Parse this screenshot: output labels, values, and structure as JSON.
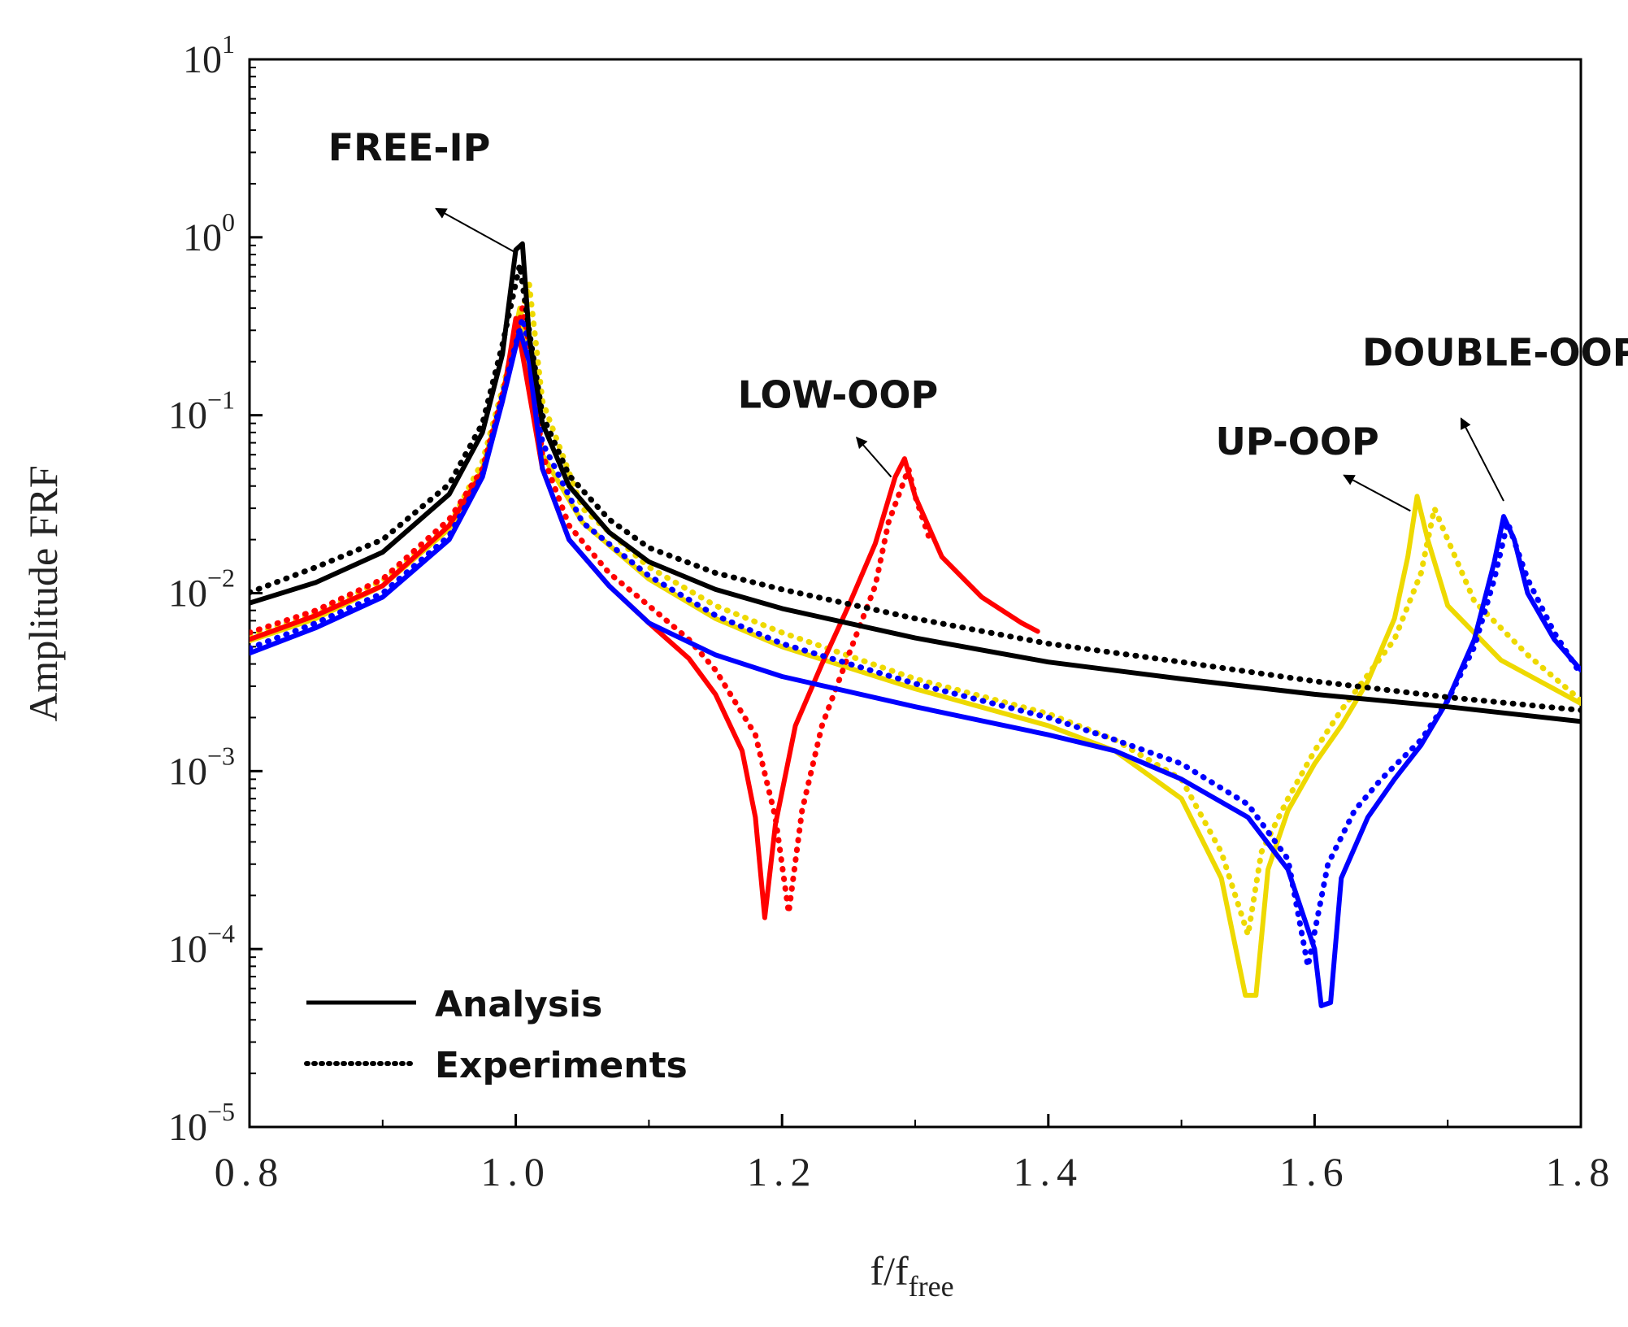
{
  "chart_data": {
    "type": "line",
    "ylabel": "Amplitude FRF",
    "xlabel": {
      "base": "f/f",
      "sub": "free"
    },
    "xlim": [
      0.8,
      1.8
    ],
    "ylim_log10": [
      -5,
      1
    ],
    "x_ticks": [
      {
        "value": 0.8,
        "label": "0.8"
      },
      {
        "value": 1.0,
        "label": "1.0"
      },
      {
        "value": 1.2,
        "label": "1.2"
      },
      {
        "value": 1.4,
        "label": "1.4"
      },
      {
        "value": 1.6,
        "label": "1.6"
      },
      {
        "value": 1.8,
        "label": "1.8"
      }
    ],
    "y_ticks": [
      {
        "exp": 1,
        "base": "10",
        "sup": "1"
      },
      {
        "exp": 0,
        "base": "10",
        "sup": "0"
      },
      {
        "exp": -1,
        "base": "10",
        "sup": "−1"
      },
      {
        "exp": -2,
        "base": "10",
        "sup": "−2"
      },
      {
        "exp": -3,
        "base": "10",
        "sup": "−3"
      },
      {
        "exp": -4,
        "base": "10",
        "sup": "−4"
      },
      {
        "exp": -5,
        "base": "10",
        "sup": "−5"
      }
    ],
    "legend": {
      "position": "bottom-left",
      "entries": [
        {
          "label": "Analysis",
          "style": "solid"
        },
        {
          "label": "Experiments",
          "style": "dotted"
        }
      ]
    },
    "annotations": [
      {
        "text": "FREE-IP",
        "text_x": 0.92,
        "text_y": 2.7,
        "arrow_from": [
          1.0,
          0.82
        ],
        "arrow_to": [
          0.94,
          1.45
        ]
      },
      {
        "text": "LOW-OOP",
        "text_x": 1.242,
        "text_y": 0.11,
        "arrow_from": [
          1.282,
          0.045
        ],
        "arrow_to": [
          1.256,
          0.075
        ]
      },
      {
        "text": "UP-OOP",
        "text_x": 1.587,
        "text_y": 0.06,
        "arrow_from": [
          1.672,
          0.029
        ],
        "arrow_to": [
          1.622,
          0.046
        ]
      },
      {
        "text": "DOUBLE-OOP",
        "text_x": 1.74,
        "text_y": 0.19,
        "arrow_from": [
          1.742,
          0.033
        ],
        "arrow_to": [
          1.71,
          0.096
        ]
      }
    ],
    "series": [
      {
        "name": "FREE-IP Analysis",
        "color": "#000000",
        "style": "solid",
        "points": [
          [
            0.8,
            0.0088
          ],
          [
            0.85,
            0.0115
          ],
          [
            0.9,
            0.017
          ],
          [
            0.95,
            0.036
          ],
          [
            0.975,
            0.08
          ],
          [
            0.99,
            0.22
          ],
          [
            1.0,
            0.85
          ],
          [
            1.005,
            0.92
          ],
          [
            1.01,
            0.28
          ],
          [
            1.02,
            0.09
          ],
          [
            1.04,
            0.04
          ],
          [
            1.07,
            0.022
          ],
          [
            1.1,
            0.015
          ],
          [
            1.15,
            0.0105
          ],
          [
            1.2,
            0.0082
          ],
          [
            1.3,
            0.0056
          ],
          [
            1.4,
            0.0041
          ],
          [
            1.5,
            0.0033
          ],
          [
            1.6,
            0.0027
          ],
          [
            1.7,
            0.0023
          ],
          [
            1.8,
            0.0019
          ]
        ]
      },
      {
        "name": "FREE-IP Experiments",
        "color": "#000000",
        "style": "dotted",
        "points": [
          [
            0.8,
            0.0101
          ],
          [
            0.85,
            0.014
          ],
          [
            0.9,
            0.02
          ],
          [
            0.95,
            0.041
          ],
          [
            0.975,
            0.09
          ],
          [
            0.99,
            0.25
          ],
          [
            1.003,
            0.7
          ],
          [
            1.01,
            0.3
          ],
          [
            1.02,
            0.1
          ],
          [
            1.04,
            0.046
          ],
          [
            1.07,
            0.026
          ],
          [
            1.1,
            0.018
          ],
          [
            1.15,
            0.013
          ],
          [
            1.2,
            0.0105
          ],
          [
            1.3,
            0.0072
          ],
          [
            1.4,
            0.0052
          ],
          [
            1.5,
            0.0041
          ],
          [
            1.6,
            0.0032
          ],
          [
            1.7,
            0.0026
          ],
          [
            1.8,
            0.0022
          ]
        ]
      },
      {
        "name": "LOW-OOP Analysis",
        "color": "#ff0000",
        "style": "solid",
        "points": [
          [
            0.8,
            0.0055
          ],
          [
            0.85,
            0.0075
          ],
          [
            0.9,
            0.011
          ],
          [
            0.95,
            0.024
          ],
          [
            0.975,
            0.048
          ],
          [
            0.99,
            0.12
          ],
          [
            1.0,
            0.35
          ],
          [
            1.005,
            0.22
          ],
          [
            1.02,
            0.05
          ],
          [
            1.04,
            0.02
          ],
          [
            1.07,
            0.011
          ],
          [
            1.1,
            0.0068
          ],
          [
            1.13,
            0.0043
          ],
          [
            1.15,
            0.0027
          ],
          [
            1.17,
            0.0013
          ],
          [
            1.18,
            0.00055
          ],
          [
            1.187,
            0.00015
          ],
          [
            1.195,
            0.0005
          ],
          [
            1.21,
            0.0018
          ],
          [
            1.23,
            0.004
          ],
          [
            1.25,
            0.0085
          ],
          [
            1.27,
            0.019
          ],
          [
            1.285,
            0.045
          ],
          [
            1.292,
            0.057
          ],
          [
            1.3,
            0.035
          ],
          [
            1.32,
            0.016
          ],
          [
            1.35,
            0.0095
          ],
          [
            1.38,
            0.0068
          ],
          [
            1.392,
            0.0061
          ]
        ]
      },
      {
        "name": "LOW-OOP Experiments",
        "color": "#ff0000",
        "style": "dotted",
        "points": [
          [
            0.8,
            0.006
          ],
          [
            0.85,
            0.008
          ],
          [
            0.9,
            0.012
          ],
          [
            0.95,
            0.026
          ],
          [
            0.975,
            0.05
          ],
          [
            0.99,
            0.13
          ],
          [
            1.005,
            0.4
          ],
          [
            1.01,
            0.25
          ],
          [
            1.02,
            0.06
          ],
          [
            1.04,
            0.024
          ],
          [
            1.07,
            0.013
          ],
          [
            1.1,
            0.0085
          ],
          [
            1.13,
            0.0055
          ],
          [
            1.15,
            0.0037
          ],
          [
            1.18,
            0.0016
          ],
          [
            1.195,
            0.00055
          ],
          [
            1.205,
            0.00016
          ],
          [
            1.215,
            0.0006
          ],
          [
            1.23,
            0.0018
          ],
          [
            1.25,
            0.0045
          ],
          [
            1.27,
            0.011
          ],
          [
            1.28,
            0.025
          ],
          [
            1.295,
            0.05
          ],
          [
            1.3,
            0.035
          ],
          [
            1.31,
            0.021
          ]
        ]
      },
      {
        "name": "UP-OOP Analysis",
        "color": "#eed900",
        "style": "solid",
        "points": [
          [
            0.8,
            0.0054
          ],
          [
            0.85,
            0.0072
          ],
          [
            0.9,
            0.011
          ],
          [
            0.95,
            0.023
          ],
          [
            0.975,
            0.05
          ],
          [
            0.99,
            0.13
          ],
          [
            1.003,
            0.4
          ],
          [
            1.01,
            0.18
          ],
          [
            1.02,
            0.06
          ],
          [
            1.05,
            0.025
          ],
          [
            1.1,
            0.012
          ],
          [
            1.15,
            0.0072
          ],
          [
            1.2,
            0.005
          ],
          [
            1.3,
            0.0029
          ],
          [
            1.4,
            0.0018
          ],
          [
            1.45,
            0.0013
          ],
          [
            1.5,
            0.0007
          ],
          [
            1.53,
            0.00025
          ],
          [
            1.548,
            5.5e-05
          ],
          [
            1.556,
            5.5e-05
          ],
          [
            1.565,
            0.00028
          ],
          [
            1.58,
            0.0006
          ],
          [
            1.6,
            0.0011
          ],
          [
            1.62,
            0.0018
          ],
          [
            1.64,
            0.0032
          ],
          [
            1.66,
            0.0072
          ],
          [
            1.67,
            0.016
          ],
          [
            1.677,
            0.035
          ],
          [
            1.685,
            0.02
          ],
          [
            1.7,
            0.0085
          ],
          [
            1.74,
            0.0042
          ],
          [
            1.8,
            0.0024
          ]
        ]
      },
      {
        "name": "UP-OOP Experiments",
        "color": "#eed900",
        "style": "dotted",
        "points": [
          [
            0.8,
            0.0058
          ],
          [
            0.85,
            0.0077
          ],
          [
            0.9,
            0.0118
          ],
          [
            0.95,
            0.024
          ],
          [
            0.975,
            0.055
          ],
          [
            0.99,
            0.14
          ],
          [
            1.01,
            0.55
          ],
          [
            1.02,
            0.12
          ],
          [
            1.05,
            0.03
          ],
          [
            1.1,
            0.014
          ],
          [
            1.15,
            0.0085
          ],
          [
            1.2,
            0.006
          ],
          [
            1.3,
            0.0033
          ],
          [
            1.4,
            0.0021
          ],
          [
            1.45,
            0.0015
          ],
          [
            1.5,
            0.0009
          ],
          [
            1.53,
            0.00035
          ],
          [
            1.55,
            0.00012
          ],
          [
            1.56,
            0.00035
          ],
          [
            1.58,
            0.0007
          ],
          [
            1.6,
            0.0013
          ],
          [
            1.62,
            0.0022
          ],
          [
            1.66,
            0.0055
          ],
          [
            1.68,
            0.013
          ],
          [
            1.69,
            0.03
          ],
          [
            1.7,
            0.02
          ],
          [
            1.72,
            0.009
          ],
          [
            1.76,
            0.0045
          ],
          [
            1.8,
            0.0025
          ]
        ]
      },
      {
        "name": "DOUBLE-OOP Analysis",
        "color": "#0000ff",
        "style": "solid",
        "points": [
          [
            0.8,
            0.0046
          ],
          [
            0.85,
            0.0064
          ],
          [
            0.9,
            0.0095
          ],
          [
            0.95,
            0.02
          ],
          [
            0.975,
            0.045
          ],
          [
            0.99,
            0.12
          ],
          [
            1.003,
            0.3
          ],
          [
            1.01,
            0.2
          ],
          [
            1.02,
            0.05
          ],
          [
            1.04,
            0.02
          ],
          [
            1.07,
            0.011
          ],
          [
            1.1,
            0.0068
          ],
          [
            1.15,
            0.0045
          ],
          [
            1.2,
            0.0034
          ],
          [
            1.3,
            0.0023
          ],
          [
            1.4,
            0.0016
          ],
          [
            1.45,
            0.0013
          ],
          [
            1.5,
            0.0009
          ],
          [
            1.55,
            0.00055
          ],
          [
            1.58,
            0.00028
          ],
          [
            1.6,
            0.0001
          ],
          [
            1.605,
            4.8e-05
          ],
          [
            1.612,
            5e-05
          ],
          [
            1.62,
            0.00025
          ],
          [
            1.64,
            0.00055
          ],
          [
            1.66,
            0.0009
          ],
          [
            1.68,
            0.0014
          ],
          [
            1.7,
            0.0025
          ],
          [
            1.72,
            0.0055
          ],
          [
            1.735,
            0.015
          ],
          [
            1.742,
            0.027
          ],
          [
            1.75,
            0.02
          ],
          [
            1.76,
            0.01
          ],
          [
            1.78,
            0.0055
          ],
          [
            1.8,
            0.0037
          ]
        ]
      },
      {
        "name": "DOUBLE-OOP Experiments",
        "color": "#0000ff",
        "style": "dotted",
        "points": [
          [
            0.8,
            0.0049
          ],
          [
            0.85,
            0.0068
          ],
          [
            0.9,
            0.01
          ],
          [
            0.95,
            0.021
          ],
          [
            0.975,
            0.046
          ],
          [
            0.99,
            0.13
          ],
          [
            1.005,
            0.35
          ],
          [
            1.01,
            0.25
          ],
          [
            1.02,
            0.07
          ],
          [
            1.05,
            0.025
          ],
          [
            1.1,
            0.0125
          ],
          [
            1.15,
            0.0075
          ],
          [
            1.2,
            0.0052
          ],
          [
            1.3,
            0.0031
          ],
          [
            1.4,
            0.002
          ],
          [
            1.45,
            0.0015
          ],
          [
            1.5,
            0.0011
          ],
          [
            1.55,
            0.00065
          ],
          [
            1.58,
            0.00032
          ],
          [
            1.595,
            8e-05
          ],
          [
            1.61,
            0.0003
          ],
          [
            1.63,
            0.0006
          ],
          [
            1.65,
            0.0009
          ],
          [
            1.68,
            0.0015
          ],
          [
            1.7,
            0.0025
          ],
          [
            1.72,
            0.005
          ],
          [
            1.735,
            0.012
          ],
          [
            1.745,
            0.025
          ],
          [
            1.76,
            0.012
          ],
          [
            1.78,
            0.006
          ],
          [
            1.8,
            0.0035
          ]
        ]
      }
    ]
  }
}
